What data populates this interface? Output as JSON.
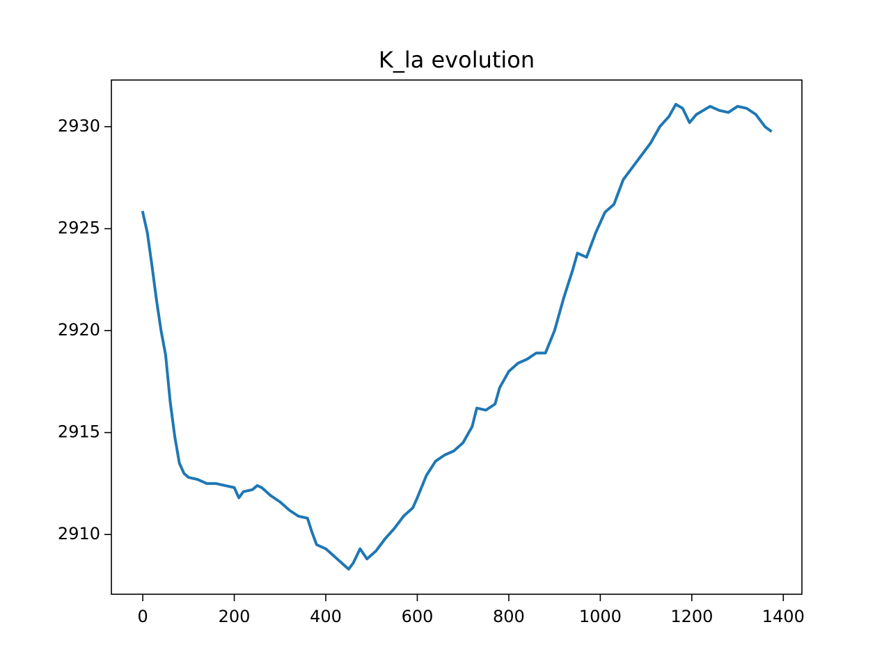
{
  "chart_data": {
    "type": "line",
    "title": "K_la evolution",
    "x": [
      0,
      10,
      20,
      30,
      40,
      50,
      60,
      70,
      80,
      90,
      100,
      120,
      140,
      160,
      180,
      200,
      210,
      220,
      240,
      250,
      260,
      280,
      300,
      320,
      340,
      360,
      370,
      380,
      400,
      420,
      440,
      450,
      460,
      475,
      490,
      510,
      530,
      550,
      570,
      590,
      600,
      620,
      640,
      660,
      680,
      700,
      720,
      730,
      750,
      770,
      780,
      800,
      820,
      840,
      860,
      880,
      900,
      920,
      940,
      950,
      970,
      990,
      1010,
      1030,
      1050,
      1070,
      1090,
      1110,
      1130,
      1150,
      1165,
      1180,
      1195,
      1210,
      1240,
      1260,
      1280,
      1300,
      1320,
      1340,
      1360,
      1372
    ],
    "series": [
      {
        "color": "#1f77b4",
        "values": [
          2925.8,
          2924.8,
          2923.2,
          2921.5,
          2920.0,
          2918.8,
          2916.5,
          2914.8,
          2913.5,
          2913.0,
          2912.8,
          2912.7,
          2912.5,
          2912.5,
          2912.4,
          2912.3,
          2911.8,
          2912.1,
          2912.2,
          2912.4,
          2912.3,
          2911.9,
          2911.6,
          2911.2,
          2910.9,
          2910.8,
          2910.1,
          2909.5,
          2909.3,
          2908.9,
          2908.5,
          2908.3,
          2908.6,
          2909.3,
          2908.8,
          2909.2,
          2909.8,
          2910.3,
          2910.9,
          2911.3,
          2911.8,
          2912.9,
          2913.6,
          2913.9,
          2914.1,
          2914.5,
          2915.3,
          2916.2,
          2916.1,
          2916.4,
          2917.2,
          2918.0,
          2918.4,
          2918.6,
          2918.9,
          2918.9,
          2920.0,
          2921.6,
          2923.0,
          2923.8,
          2923.6,
          2924.8,
          2925.8,
          2926.2,
          2927.4,
          2928.0,
          2928.6,
          2929.2,
          2930.0,
          2930.5,
          2931.1,
          2930.9,
          2930.2,
          2930.6,
          2931.0,
          2930.8,
          2930.7,
          2931.0,
          2930.9,
          2930.6,
          2930.0,
          2929.8
        ]
      }
    ],
    "xlim": [
      -68.6,
      1440.6
    ],
    "xticks": [
      0,
      200,
      400,
      600,
      800,
      1000,
      1200,
      1400
    ],
    "ylim": [
      2907.07,
      2932.29
    ],
    "yticks": [
      2910,
      2915,
      2920,
      2925,
      2930
    ]
  }
}
